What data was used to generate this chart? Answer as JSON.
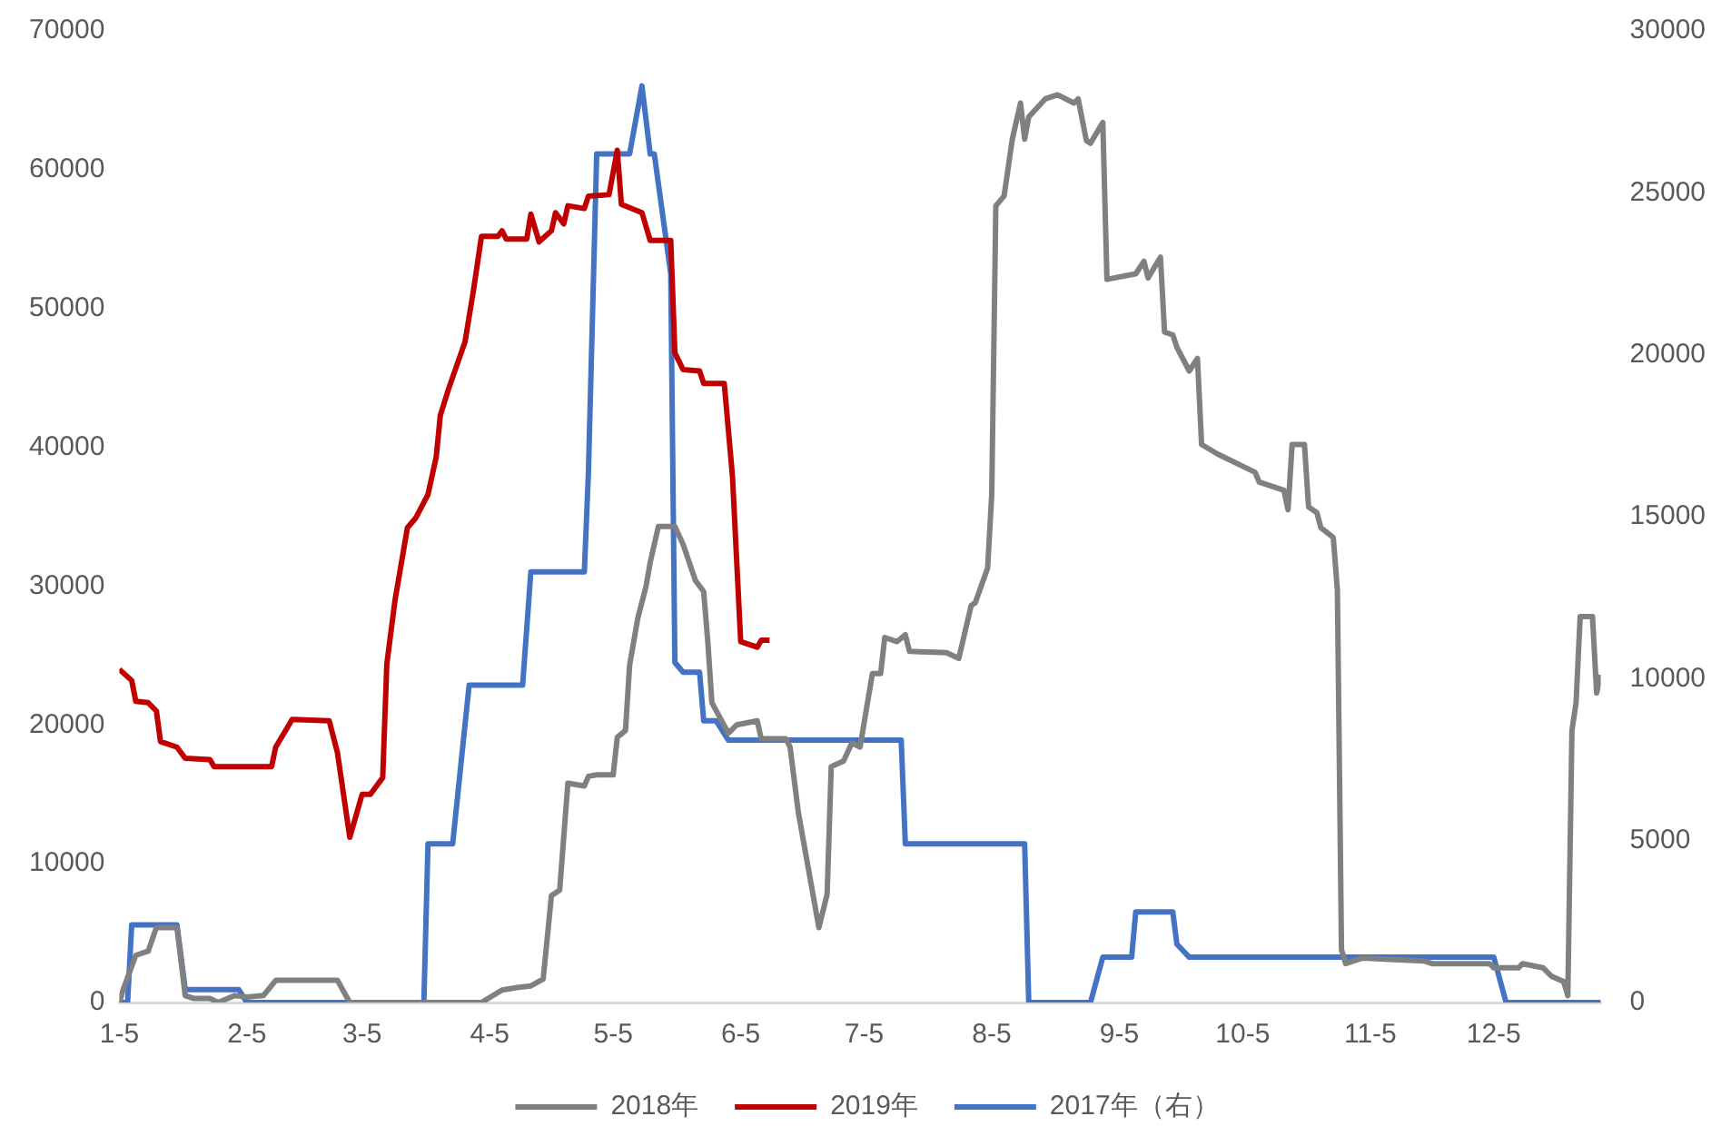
{
  "chart_data": {
    "type": "line",
    "legend": "bottom",
    "grid": false,
    "marker": "none",
    "line_style": "solid",
    "xlim": [
      "--01-05",
      "--12-31"
    ],
    "xticks": [
      {
        "value": "--01-05",
        "label": "1-5"
      },
      {
        "value": "--02-05",
        "label": "2-5"
      },
      {
        "value": "--03-05",
        "label": "3-5"
      },
      {
        "value": "--04-05",
        "label": "4-5"
      },
      {
        "value": "--05-05",
        "label": "5-5"
      },
      {
        "value": "--06-05",
        "label": "6-5"
      },
      {
        "value": "--07-05",
        "label": "7-5"
      },
      {
        "value": "--08-05",
        "label": "8-5"
      },
      {
        "value": "--09-05",
        "label": "9-5"
      },
      {
        "value": "--10-05",
        "label": "10-5"
      },
      {
        "value": "--11-05",
        "label": "11-5"
      },
      {
        "value": "--12-05",
        "label": "12-5"
      }
    ],
    "ylim": [
      0,
      70000
    ],
    "yticks": [
      0,
      10000,
      20000,
      30000,
      40000,
      50000,
      60000,
      70000
    ],
    "y2lim": [
      0,
      30000
    ],
    "y2ticks": [
      0,
      5000,
      10000,
      15000,
      20000,
      25000,
      30000
    ],
    "series": [
      {
        "name": "2018年",
        "color": "#808080",
        "x": [
          "--01-05",
          "--01-06",
          "--01-09",
          "--01-12",
          "--01-14",
          "--01-19",
          "--01-21",
          "--01-23",
          "--01-27",
          "--01-29",
          "--02-02",
          "--02-05",
          "--02-09",
          "--02-12",
          "--02-27",
          "--03-02",
          "--04-03",
          "--04-08",
          "--04-12",
          "--04-15",
          "--04-18",
          "--04-20",
          "--04-22",
          "--04-24",
          "--04-28",
          "--04-29",
          "--05-01",
          "--05-05",
          "--05-06",
          "--05-08",
          "--05-09",
          "--05-11",
          "--05-13",
          "--05-14",
          "--05-16",
          "--05-20",
          "--05-22",
          "--05-25",
          "--05-27",
          "--05-28",
          "--05-29",
          "--06-02",
          "--06-04",
          "--06-09",
          "--06-10",
          "--06-16",
          "--06-17",
          "--06-19",
          "--06-24",
          "--06-26",
          "--06-27",
          "--06-30",
          "--07-02",
          "--07-04",
          "--07-07",
          "--07-09",
          "--07-10",
          "--07-13",
          "--07-15",
          "--07-16",
          "--07-25",
          "--07-28",
          "--07-31",
          "--08-01",
          "--08-04",
          "--08-05",
          "--08-06",
          "--08-08",
          "--08-10",
          "--08-12",
          "--08-13",
          "--08-14",
          "--08-18",
          "--08-21",
          "--08-25",
          "--08-26",
          "--08-28",
          "--08-29",
          "--09-01",
          "--09-02",
          "--09-09",
          "--09-11",
          "--09-12",
          "--09-15",
          "--09-16",
          "--09-18",
          "--09-19",
          "--09-22",
          "--09-24",
          "--09-25",
          "--09-29",
          "--10-08",
          "--10-09",
          "--10-15",
          "--10-16",
          "--10-17",
          "--10-20",
          "--10-21",
          "--10-23",
          "--10-24",
          "--10-27",
          "--10-28",
          "--10-29",
          "--10-30",
          "--11-03",
          "--11-18",
          "--11-20",
          "--12-04",
          "--12-05",
          "--12-11",
          "--12-12",
          "--12-17",
          "--12-19",
          "--12-22",
          "--12-23",
          "--12-24",
          "--12-25",
          "--12-26",
          "--12-29",
          "--12-30",
          "--12-31"
        ],
        "values": [
          0,
          1000,
          3400,
          3700,
          5400,
          5400,
          500,
          300,
          300,
          0,
          500,
          400,
          500,
          1600,
          1600,
          0,
          0,
          900,
          1100,
          1200,
          1700,
          7700,
          8100,
          15800,
          15600,
          16300,
          16400,
          16400,
          19100,
          19600,
          24300,
          27700,
          30000,
          31700,
          34300,
          34300,
          33000,
          30400,
          29600,
          26000,
          21600,
          19400,
          20000,
          20300,
          19000,
          19000,
          18400,
          13700,
          5400,
          7800,
          17000,
          17400,
          18700,
          18400,
          23700,
          23700,
          26300,
          26000,
          26500,
          25300,
          25200,
          24800,
          28600,
          28800,
          31300,
          36600,
          57400,
          58100,
          62200,
          64800,
          62200,
          63800,
          65100,
          65400,
          64800,
          65100,
          62100,
          61900,
          63400,
          52100,
          52500,
          53400,
          52200,
          53700,
          48300,
          48100,
          47200,
          45500,
          46400,
          40200,
          39500,
          38200,
          37500,
          36900,
          35500,
          40200,
          40200,
          35700,
          35300,
          34200,
          33500,
          29700,
          3800,
          2800,
          3200,
          3000,
          2800,
          2800,
          2500,
          2500,
          2800,
          2500,
          1900,
          1500,
          500,
          19600,
          21600,
          27800,
          27800,
          22300,
          23600
        ]
      },
      {
        "name": "2019年",
        "color": "#c00000",
        "x": [
          "--01-05",
          "--01-08",
          "--01-09",
          "--01-12",
          "--01-14",
          "--01-15",
          "--01-19",
          "--01-21",
          "--01-27",
          "--01-28",
          "--02-11",
          "--02-12",
          "--02-16",
          "--02-25",
          "--02-27",
          "--03-02",
          "--03-05",
          "--03-07",
          "--03-10",
          "--03-11",
          "--03-13",
          "--03-16",
          "--03-18",
          "--03-21",
          "--03-23",
          "--03-24",
          "--03-26",
          "--03-30",
          "--04-01",
          "--04-03",
          "--04-07",
          "--04-08",
          "--04-09",
          "--04-14",
          "--04-15",
          "--04-17",
          "--04-20",
          "--04-21",
          "--04-23",
          "--04-24",
          "--04-28",
          "--04-29",
          "--05-04",
          "--05-06",
          "--05-07",
          "--05-12",
          "--05-14",
          "--05-19",
          "--05-20",
          "--05-22",
          "--05-26",
          "--05-27",
          "--06-01",
          "--06-03",
          "--06-05",
          "--06-09",
          "--06-10",
          "--06-12"
        ],
        "values": [
          24000,
          23200,
          21700,
          21600,
          21000,
          18800,
          18400,
          17600,
          17500,
          17000,
          17000,
          18400,
          20400,
          20300,
          18000,
          11900,
          15000,
          15000,
          16200,
          24400,
          29000,
          34200,
          34900,
          36600,
          39300,
          42300,
          44200,
          47600,
          51200,
          55200,
          55200,
          55600,
          55000,
          55000,
          56800,
          54800,
          55600,
          56900,
          56100,
          57400,
          57200,
          58100,
          58200,
          61400,
          57500,
          56900,
          54900,
          54900,
          46800,
          45600,
          45500,
          44600,
          44600,
          37900,
          26000,
          25600,
          26100,
          26100
        ]
      },
      {
        "name": "2017年（右）",
        "color": "#4472c4",
        "axis": "y2",
        "x": [
          "--01-05",
          "--01-07",
          "--01-08",
          "--01-19",
          "--01-21",
          "--02-03",
          "--02-05",
          "--03-20",
          "--03-21",
          "--03-27",
          "--03-31",
          "--04-13",
          "--04-15",
          "--04-28",
          "--04-29",
          "--05-01",
          "--05-09",
          "--05-12",
          "--05-14",
          "--05-15",
          "--05-19",
          "--05-20",
          "--05-22",
          "--05-26",
          "--05-27",
          "--05-30",
          "--06-02",
          "--07-14",
          "--07-15",
          "--08-13",
          "--08-14",
          "--08-29",
          "--09-01",
          "--09-08",
          "--09-09",
          "--09-18",
          "--09-19",
          "--09-22",
          "--12-05",
          "--12-08",
          "--12-31"
        ],
        "values": [
          0,
          0,
          2400,
          2400,
          400,
          400,
          0,
          0,
          4900,
          4900,
          9800,
          9800,
          13300,
          13300,
          16400,
          26200,
          26200,
          28300,
          26200,
          26200,
          22500,
          10500,
          10200,
          10200,
          8700,
          8700,
          8100,
          8100,
          4900,
          4900,
          0,
          0,
          1400,
          1400,
          2800,
          2800,
          1800,
          1400,
          1400,
          0,
          0
        ]
      }
    ]
  }
}
